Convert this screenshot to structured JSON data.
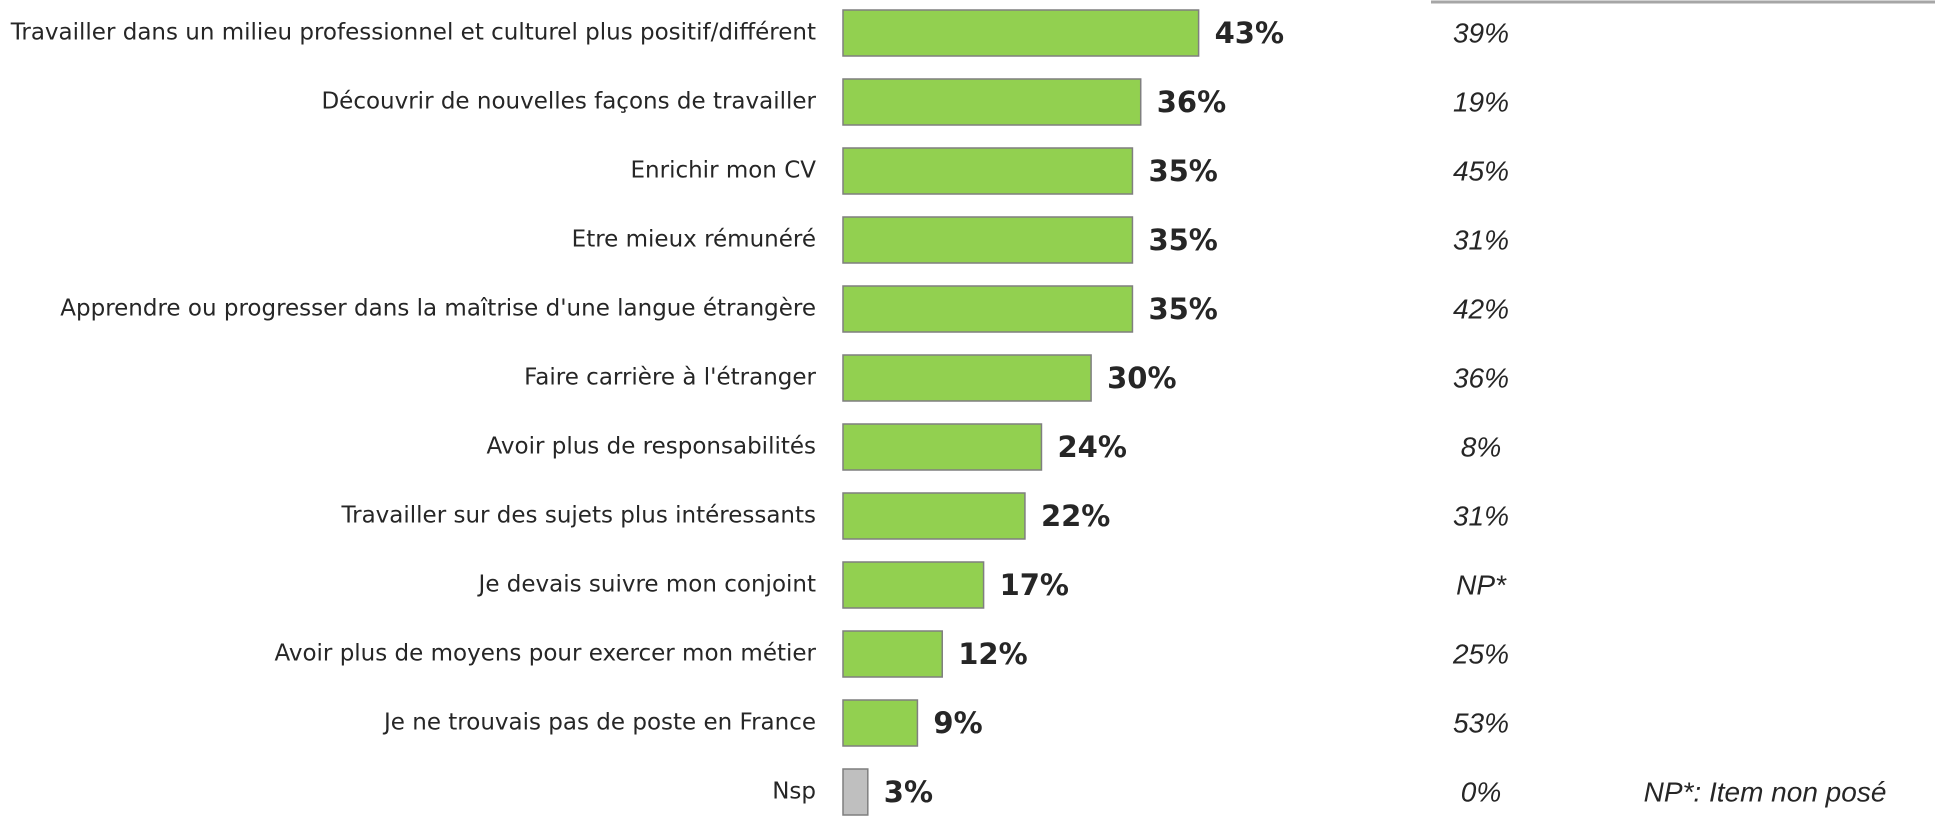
{
  "chart_data": {
    "type": "hbar",
    "categories": [
      "Travailler dans un milieu professionnel et culturel plus positif/différent",
      "Découvrir de nouvelles façons de travailler",
      "Enrichir mon CV",
      "Etre mieux rémunéré",
      "Apprendre ou progresser dans la maîtrise d'une langue étrangère",
      "Faire carrière à l'étranger",
      "Avoir plus de responsabilités",
      "Travailler sur des sujets plus intéressants",
      "Je devais suivre mon conjoint",
      "Avoir plus de moyens pour exercer mon métier",
      "Je ne trouvais pas de poste en France",
      "Nsp"
    ],
    "series": [
      {
        "colors": [
          "#92d050",
          "#92d050",
          "#92d050",
          "#92d050",
          "#92d050",
          "#92d050",
          "#92d050",
          "#92d050",
          "#92d050",
          "#92d050",
          "#92d050",
          "#bfbfbf"
        ],
        "values": [
          43,
          36,
          35,
          35,
          35,
          30,
          24,
          22,
          17,
          12,
          9,
          3
        ],
        "value_labels": [
          "43%",
          "36%",
          "35%",
          "35%",
          "35%",
          "30%",
          "24%",
          "22%",
          "17%",
          "12%",
          "9%",
          "3%"
        ]
      },
      {
        "values": [
          39,
          19,
          45,
          31,
          42,
          36,
          8,
          31,
          null,
          25,
          53,
          0
        ],
        "value_labels": [
          "39%",
          "19%",
          "45%",
          "31%",
          "42%",
          "36%",
          "8%",
          "31%",
          "NP*",
          "25%",
          "53%",
          "0%"
        ]
      }
    ],
    "annotation": "NP*: Item non posé"
  }
}
